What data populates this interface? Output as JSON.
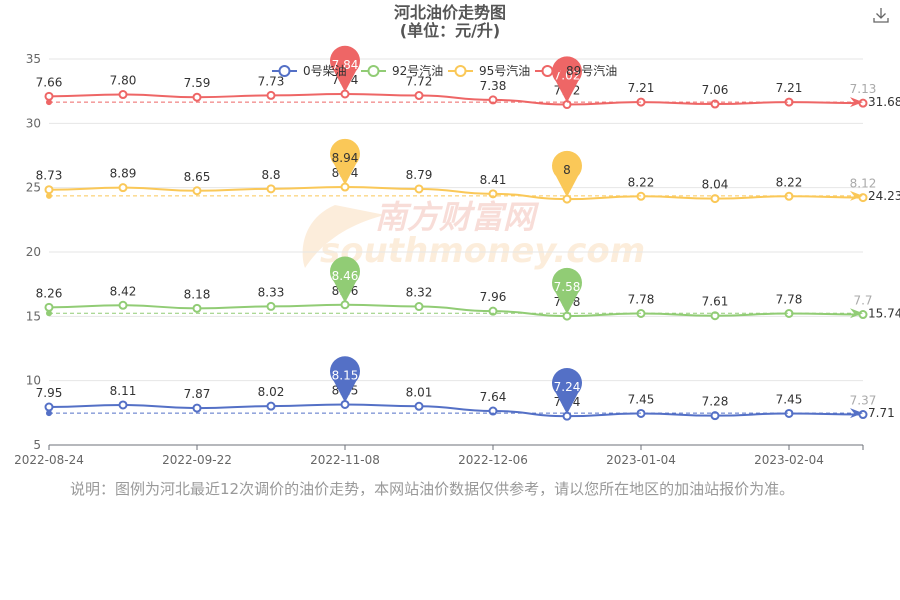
{
  "chart_data": {
    "type": "line",
    "title": "河北油价走势图",
    "subtitle": "(单位：元/升)",
    "x_ticks": [
      "2022-08-24",
      "2022-09-22",
      "2022-11-08",
      "2022-12-06",
      "2023-01-04",
      "2023-02-04"
    ],
    "ylim": [
      5,
      35
    ],
    "y_ticks": [
      5,
      10,
      15,
      20,
      25,
      30,
      35
    ],
    "grid": true,
    "legend_position": "top",
    "series": [
      {
        "name": "0号柴油",
        "color": "#5470c6",
        "values": [
          7.95,
          8.11,
          7.87,
          8.02,
          8.15,
          8.01,
          7.64,
          7.24,
          7.45,
          7.28,
          7.45,
          7.37
        ],
        "labels": [
          "7.95",
          "8.11",
          "7.87",
          "8.02",
          "8.15",
          "8.01",
          "7.64",
          "7.24",
          "7.45",
          "7.28",
          "7.45",
          "7.37"
        ],
        "max": "8.15",
        "min": "7.24",
        "avg": "7.71"
      },
      {
        "name": "92号汽油",
        "color": "#91cc75",
        "values": [
          8.26,
          8.42,
          8.18,
          8.33,
          8.46,
          8.32,
          7.96,
          7.58,
          7.78,
          7.61,
          7.78,
          7.7
        ],
        "labels": [
          "8.26",
          "8.42",
          "8.18",
          "8.33",
          "8.46",
          "8.32",
          "7.96",
          "7.58",
          "7.78",
          "7.61",
          "7.78",
          "7.7"
        ],
        "max": "8.46",
        "min": "7.58",
        "avg": "15.74"
      },
      {
        "name": "95号汽油",
        "color": "#fac858",
        "values": [
          8.73,
          8.89,
          8.65,
          8.8,
          8.94,
          8.79,
          8.41,
          8,
          8.22,
          8.04,
          8.22,
          8.12
        ],
        "labels": [
          "8.73",
          "8.89",
          "8.65",
          "8.8",
          "8.94",
          "8.79",
          "8.41",
          "8",
          "8.22",
          "8.04",
          "8.22",
          "8.12"
        ],
        "max": "8.94",
        "min": "8",
        "avg": "24.23"
      },
      {
        "name": "89号汽油",
        "color": "#ee6666",
        "values": [
          7.66,
          7.8,
          7.59,
          7.73,
          7.84,
          7.72,
          7.38,
          7.02,
          7.21,
          7.06,
          7.21,
          7.13
        ],
        "labels": [
          "7.66",
          "7.80",
          "7.59",
          "7.73",
          "7.84",
          "7.72",
          "7.38",
          "7.02",
          "7.21",
          "7.06",
          "7.21",
          "7.13"
        ],
        "max": "7.84",
        "min": "7.02",
        "avg": "31.68"
      }
    ]
  },
  "watermark": "南方财富网 southmoney.com",
  "note": "说明：图例为河北最近12次调价的油价走势，本网站油价数据仅供参考，请以您所在地区的加油站报价为准。",
  "icons": {
    "download": "download-icon"
  }
}
